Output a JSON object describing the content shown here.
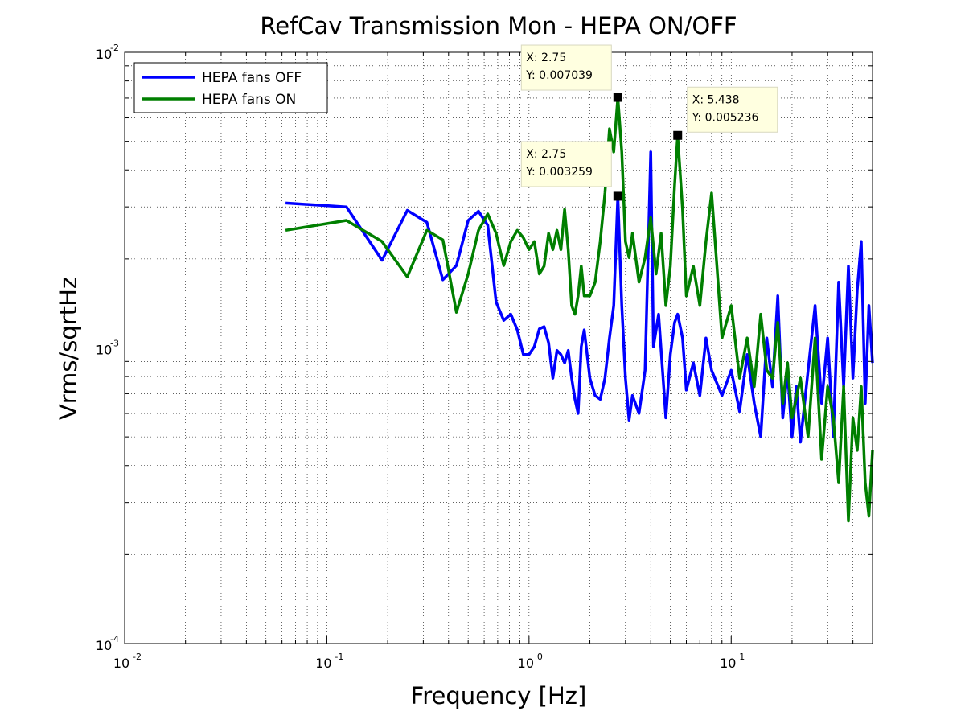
{
  "chart_data": {
    "type": "line",
    "title": "RefCav Transmission Mon - HEPA ON/OFF",
    "x_label": "Frequency [Hz]",
    "y_label": "Vrms/sqrtHz",
    "log_x": true,
    "log_y": true,
    "grid": true,
    "minor_grid": true,
    "legend": "upper left",
    "xlim": [
      0.01,
      50
    ],
    "ylim": [
      0.0001,
      0.01
    ],
    "xticks": [
      {
        "value": 0.01,
        "label": "10",
        "exponent": "-2"
      },
      {
        "value": 0.1,
        "label": "10",
        "exponent": "-1"
      },
      {
        "value": 1,
        "label": "10",
        "exponent": "0"
      },
      {
        "value": 10,
        "label": "10",
        "exponent": "1"
      }
    ],
    "yticks": [
      {
        "value": 0.0001,
        "label": "10",
        "exponent": "-4"
      },
      {
        "value": 0.001,
        "label": "10",
        "exponent": "-3"
      },
      {
        "value": 0.01,
        "label": "10",
        "exponent": "-2"
      }
    ],
    "series": [
      {
        "name": "HEPA fans OFF",
        "color": "#0000ff",
        "x": [
          0.0625,
          0.125,
          0.1875,
          0.25,
          0.3125,
          0.375,
          0.4375,
          0.5,
          0.5625,
          0.625,
          0.6875,
          0.75,
          0.8125,
          0.875,
          0.9375,
          1.0,
          1.0625,
          1.125,
          1.1875,
          1.25,
          1.3125,
          1.375,
          1.4375,
          1.5,
          1.5625,
          1.625,
          1.6875,
          1.75,
          1.8125,
          1.875,
          1.9375,
          2.0,
          2.125,
          2.25,
          2.375,
          2.5,
          2.625,
          2.75,
          2.875,
          3.0,
          3.125,
          3.25,
          3.5,
          3.75,
          4.0,
          4.125,
          4.375,
          4.75,
          5.0,
          5.25,
          5.438,
          5.75,
          6.0,
          6.5,
          7.0,
          7.5,
          8.0,
          9,
          10,
          11,
          12,
          13,
          14,
          15,
          16,
          17,
          18,
          19,
          20,
          21,
          22,
          24,
          26,
          28,
          30,
          32,
          34,
          36,
          38,
          40,
          42,
          44,
          46,
          48,
          50
        ],
        "values": [
          0.00309,
          0.003,
          0.00198,
          0.00292,
          0.00266,
          0.0017,
          0.0019,
          0.0027,
          0.0029,
          0.0026,
          0.00143,
          0.00124,
          0.0013,
          0.00115,
          0.00095,
          0.00095,
          0.00101,
          0.00116,
          0.00118,
          0.00104,
          0.00079,
          0.00098,
          0.00095,
          0.00089,
          0.00098,
          0.00079,
          0.00067,
          0.0006,
          0.00101,
          0.00115,
          0.00095,
          0.00079,
          0.00069,
          0.00067,
          0.00079,
          0.00108,
          0.00139,
          0.003259,
          0.00139,
          0.00079,
          0.00057,
          0.00069,
          0.0006,
          0.00084,
          0.0046,
          0.00101,
          0.0013,
          0.00058,
          0.00095,
          0.00122,
          0.0013,
          0.00108,
          0.00072,
          0.00089,
          0.00069,
          0.00108,
          0.00084,
          0.00069,
          0.00084,
          0.00061,
          0.00095,
          0.00065,
          0.0005,
          0.00108,
          0.00074,
          0.0015,
          0.00058,
          0.00084,
          0.0005,
          0.00074,
          0.00048,
          0.00084,
          0.00139,
          0.00065,
          0.00108,
          0.0005,
          0.00167,
          0.00074,
          0.00189,
          0.00079,
          0.00157,
          0.00229,
          0.00065,
          0.00139,
          0.00089
        ]
      },
      {
        "name": "HEPA fans ON",
        "color": "#007f00",
        "x": [
          0.0625,
          0.125,
          0.1875,
          0.25,
          0.3125,
          0.375,
          0.4375,
          0.5,
          0.5625,
          0.625,
          0.6875,
          0.75,
          0.8125,
          0.875,
          0.9375,
          1.0,
          1.0625,
          1.125,
          1.1875,
          1.25,
          1.3125,
          1.375,
          1.4375,
          1.5,
          1.5625,
          1.625,
          1.6875,
          1.75,
          1.8125,
          1.875,
          2.0,
          2.125,
          2.25,
          2.375,
          2.5,
          2.625,
          2.75,
          2.875,
          3.0,
          3.125,
          3.25,
          3.5,
          3.75,
          4.0,
          4.25,
          4.5,
          4.75,
          5.0,
          5.25,
          5.438,
          5.75,
          6.0,
          6.5,
          7.0,
          7.5,
          8.0,
          8.5,
          9,
          10,
          11,
          12,
          13,
          14,
          15,
          16,
          17,
          18,
          19,
          20,
          22,
          24,
          26,
          28,
          30,
          32,
          34,
          36,
          38,
          40,
          42,
          44,
          46,
          48,
          50
        ],
        "values": [
          0.0025,
          0.0027,
          0.00229,
          0.00174,
          0.0025,
          0.00232,
          0.00132,
          0.00178,
          0.0025,
          0.00284,
          0.00244,
          0.0019,
          0.00229,
          0.0025,
          0.00236,
          0.00215,
          0.00229,
          0.00178,
          0.00189,
          0.00244,
          0.00215,
          0.0025,
          0.00215,
          0.00294,
          0.00215,
          0.00139,
          0.0013,
          0.0015,
          0.00189,
          0.0015,
          0.0015,
          0.00167,
          0.00229,
          0.00334,
          0.00551,
          0.0046,
          0.007039,
          0.0046,
          0.00229,
          0.00202,
          0.00244,
          0.00167,
          0.00202,
          0.00276,
          0.00178,
          0.00244,
          0.00139,
          0.00189,
          0.00355,
          0.005236,
          0.00294,
          0.0015,
          0.00189,
          0.00139,
          0.00229,
          0.00334,
          0.00189,
          0.00108,
          0.00139,
          0.00079,
          0.00108,
          0.00074,
          0.0013,
          0.00084,
          0.00079,
          0.00122,
          0.00065,
          0.00089,
          0.00058,
          0.00079,
          0.0005,
          0.00108,
          0.00042,
          0.00074,
          0.00058,
          0.00035,
          0.00074,
          0.00026,
          0.00058,
          0.00045,
          0.00074,
          0.00035,
          0.00027,
          0.00045
        ]
      }
    ],
    "annotations": [
      {
        "x": 2.75,
        "y": 0.007039,
        "lines": [
          "X: 2.75",
          "Y: 0.007039"
        ]
      },
      {
        "x": 2.75,
        "y": 0.003259,
        "lines": [
          "X: 2.75",
          "Y: 0.003259"
        ]
      },
      {
        "x": 5.438,
        "y": 0.005236,
        "lines": [
          "X: 5.438",
          "Y: 0.005236"
        ]
      }
    ]
  }
}
